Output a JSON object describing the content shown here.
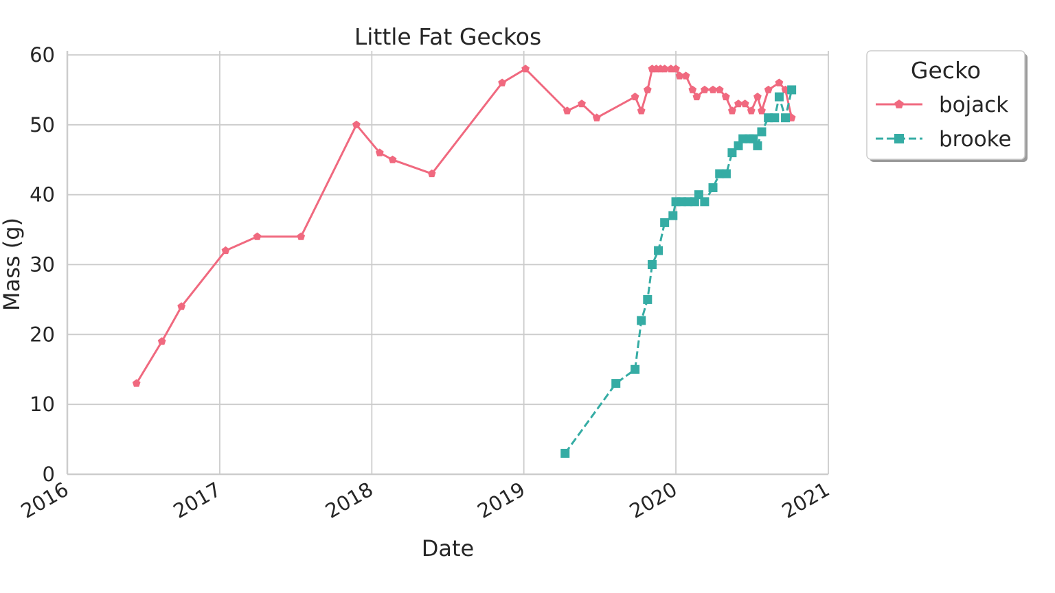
{
  "chart_data": {
    "type": "line",
    "title": "Little Fat Geckos",
    "xlabel": "Date",
    "ylabel": "Mass (g)",
    "xlim": [
      "2016-01-01",
      "2021-01-01"
    ],
    "ylim": [
      0,
      60
    ],
    "x_ticks": [
      "2016",
      "2017",
      "2018",
      "2019",
      "2020",
      "2021"
    ],
    "y_ticks": [
      "0",
      "10",
      "20",
      "30",
      "40",
      "50",
      "60"
    ],
    "grid": true,
    "legend": {
      "title": "Gecko",
      "placement": "outside-top-right"
    },
    "series": [
      {
        "name": "bojack",
        "color": "#f0697f",
        "line_style": "solid",
        "marker": "pentagon",
        "points": [
          [
            "2016-06-15",
            13
          ],
          [
            "2016-08-15",
            19
          ],
          [
            "2016-10-01",
            24
          ],
          [
            "2017-01-15",
            32
          ],
          [
            "2017-04-01",
            34
          ],
          [
            "2017-07-15",
            34
          ],
          [
            "2017-11-25",
            50
          ],
          [
            "2018-01-20",
            46
          ],
          [
            "2018-02-20",
            45
          ],
          [
            "2018-05-25",
            43
          ],
          [
            "2018-11-10",
            56
          ],
          [
            "2019-01-05",
            58
          ],
          [
            "2019-04-15",
            52
          ],
          [
            "2019-05-20",
            53
          ],
          [
            "2019-06-25",
            51
          ],
          [
            "2019-09-25",
            54
          ],
          [
            "2019-10-10",
            52
          ],
          [
            "2019-10-25",
            55
          ],
          [
            "2019-11-05",
            58
          ],
          [
            "2019-11-15",
            58
          ],
          [
            "2019-11-25",
            58
          ],
          [
            "2019-12-05",
            58
          ],
          [
            "2019-12-20",
            58
          ],
          [
            "2020-01-01",
            58
          ],
          [
            "2020-01-10",
            57
          ],
          [
            "2020-01-25",
            57
          ],
          [
            "2020-02-10",
            55
          ],
          [
            "2020-02-20",
            54
          ],
          [
            "2020-03-10",
            55
          ],
          [
            "2020-03-30",
            55
          ],
          [
            "2020-04-15",
            55
          ],
          [
            "2020-04-30",
            54
          ],
          [
            "2020-05-15",
            52
          ],
          [
            "2020-05-30",
            53
          ],
          [
            "2020-06-15",
            53
          ],
          [
            "2020-06-30",
            52
          ],
          [
            "2020-07-15",
            54
          ],
          [
            "2020-07-25",
            52
          ],
          [
            "2020-08-10",
            55
          ],
          [
            "2020-09-05",
            56
          ],
          [
            "2020-09-20",
            55
          ],
          [
            "2020-10-05",
            51
          ]
        ]
      },
      {
        "name": "brooke",
        "color": "#35aca4",
        "line_style": "dashed",
        "marker": "square",
        "points": [
          [
            "2019-04-10",
            3
          ],
          [
            "2019-08-10",
            13
          ],
          [
            "2019-09-25",
            15
          ],
          [
            "2019-10-10",
            22
          ],
          [
            "2019-10-25",
            25
          ],
          [
            "2019-11-05",
            30
          ],
          [
            "2019-11-20",
            32
          ],
          [
            "2019-12-05",
            36
          ],
          [
            "2019-12-25",
            37
          ],
          [
            "2020-01-01",
            39
          ],
          [
            "2020-01-15",
            39
          ],
          [
            "2020-01-30",
            39
          ],
          [
            "2020-02-15",
            39
          ],
          [
            "2020-02-25",
            40
          ],
          [
            "2020-03-10",
            39
          ],
          [
            "2020-03-30",
            41
          ],
          [
            "2020-04-15",
            43
          ],
          [
            "2020-05-01",
            43
          ],
          [
            "2020-05-15",
            46
          ],
          [
            "2020-05-30",
            47
          ],
          [
            "2020-06-10",
            48
          ],
          [
            "2020-06-25",
            48
          ],
          [
            "2020-07-05",
            48
          ],
          [
            "2020-07-15",
            47
          ],
          [
            "2020-07-25",
            49
          ],
          [
            "2020-08-10",
            51
          ],
          [
            "2020-08-25",
            51
          ],
          [
            "2020-09-05",
            54
          ],
          [
            "2020-09-20",
            51
          ],
          [
            "2020-10-05",
            55
          ]
        ]
      }
    ]
  }
}
